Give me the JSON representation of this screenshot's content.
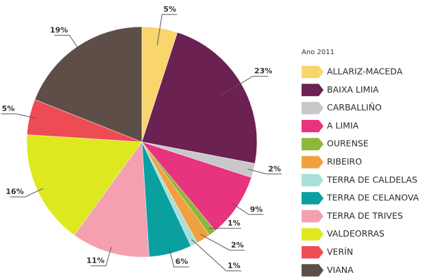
{
  "chart_data": {
    "type": "pie",
    "legend_title": "Ano 2011",
    "legend": "right",
    "categories": [
      "ALLARIZ-MACEDA",
      "BAIXA LIMIA",
      "CARBALLIÑO",
      "A LIMIA",
      "OURENSE",
      "RIBEIRO",
      "TERRA DE CALDELAS",
      "TERRA DE CELANOVA",
      "TERRA DE TRIVES",
      "VALDEORRAS",
      "VERÍN",
      "VIANA"
    ],
    "values": [
      5,
      23,
      2,
      9,
      1,
      2,
      1,
      6,
      11,
      16,
      5,
      19
    ],
    "colors": [
      "#f9d56e",
      "#6b2152",
      "#c8c8c8",
      "#e8337e",
      "#8cb83a",
      "#f0a040",
      "#a8e0d8",
      "#0aa0a0",
      "#f4a0b0",
      "#dde81e",
      "#ee4c55",
      "#5e4e48"
    ]
  }
}
